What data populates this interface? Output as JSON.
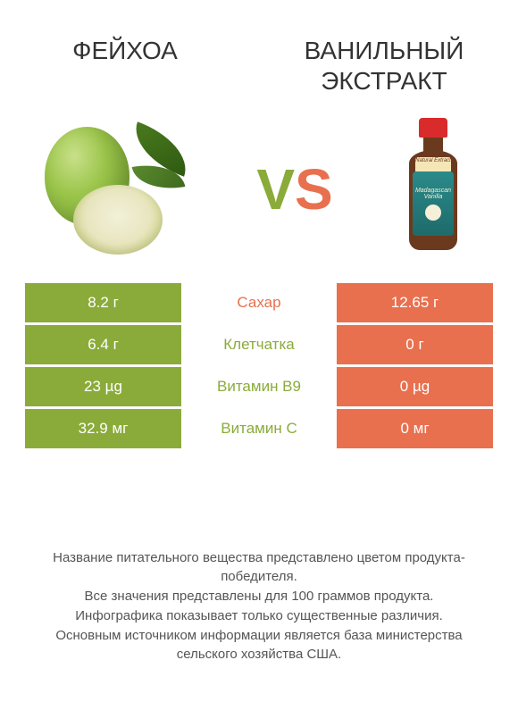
{
  "header": {
    "left_title": "ФЕЙХОА",
    "right_title": "ВАНИЛЬНЫЙ ЭКСТРАКТ"
  },
  "vs": {
    "v": "V",
    "s": "S"
  },
  "colors": {
    "left": "#8aab3a",
    "right": "#e8704f",
    "mid_text_left": "#8aab3a",
    "mid_text_right": "#e8704f",
    "row_bg": "#ffffff",
    "title_color": "#333333",
    "footer_color": "#555555"
  },
  "table": {
    "rows": [
      {
        "left": "8.2 г",
        "mid": "Сахар",
        "right": "12.65 г",
        "winner": "right"
      },
      {
        "left": "6.4 г",
        "mid": "Клетчатка",
        "right": "0 г",
        "winner": "left"
      },
      {
        "left": "23 µg",
        "mid": "Витамин B9",
        "right": "0 µg",
        "winner": "left"
      },
      {
        "left": "32.9 мг",
        "mid": "Витамин C",
        "right": "0 мг",
        "winner": "left"
      }
    ]
  },
  "footer": {
    "line1": "Название питательного вещества представлено цветом продукта-победителя.",
    "line2": "Все значения представлены для 100 граммов продукта.",
    "line3": "Инфографика показывает только существенные различия.",
    "line4": "Основным источником информации является база министерства сельского хозяйства США."
  },
  "bottle_label": {
    "top": "Natural Extract",
    "main": "Madagascan Vanilla"
  }
}
